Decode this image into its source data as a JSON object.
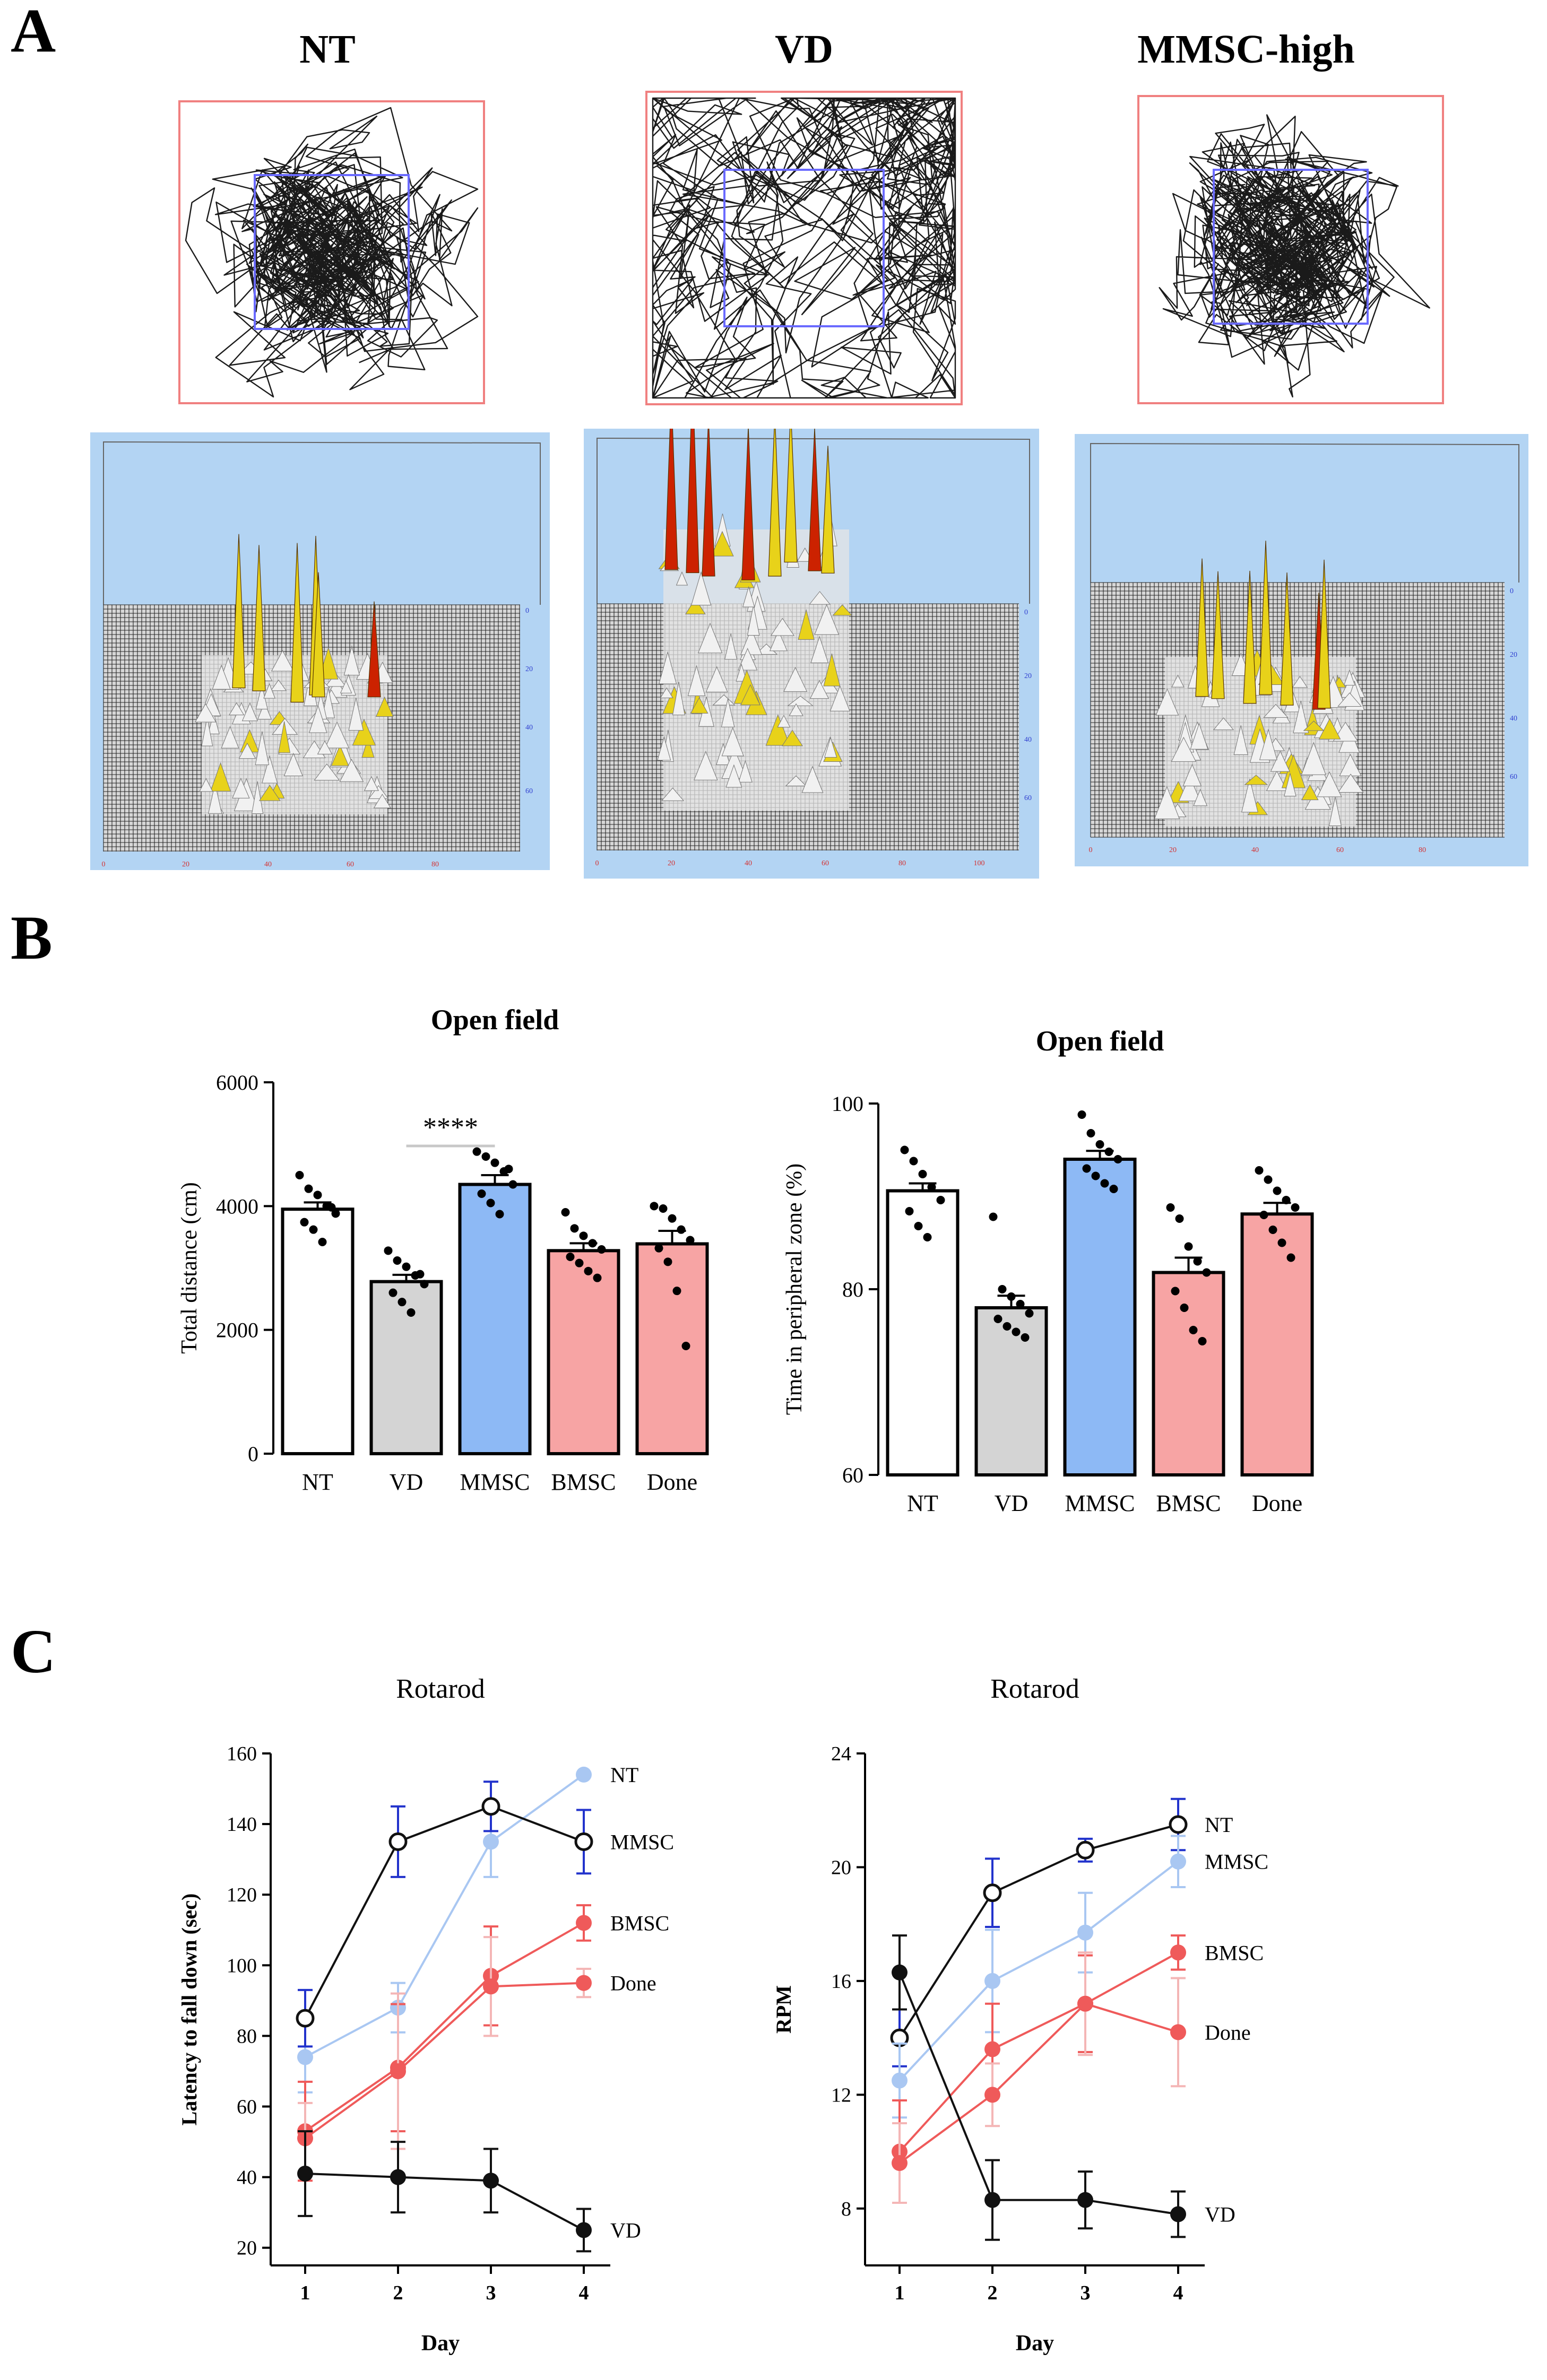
{
  "panel_labels": {
    "a": "A",
    "b": "B",
    "c": "C"
  },
  "panel_a": {
    "groups": [
      "NT",
      "VD",
      "MMSC-high"
    ],
    "heatmap_x_ticks": [
      "0",
      "20",
      "40",
      "60",
      "80"
    ],
    "heatmap_x_ticks_vd": [
      "0",
      "20",
      "40",
      "60",
      "80",
      "100"
    ],
    "heatmap_y_ticks": [
      "0",
      "20",
      "40",
      "60"
    ],
    "colors": {
      "track": "#1a1a1a",
      "arena_border": "#f08080",
      "center_zone": "#6a6aff",
      "heatmap_bg": "#b3d4f3",
      "peak_high": "#cc2200",
      "peak_mid": "#e8d21a"
    }
  },
  "chart_data": [
    {
      "type": "bar",
      "title": "Open field",
      "ylabel": "Total distance (cm)",
      "categories": [
        "NT",
        "VD",
        "MMSC",
        "BMSC",
        "Done"
      ],
      "values": [
        3950,
        2780,
        4350,
        3280,
        3390
      ],
      "errors": [
        110,
        110,
        150,
        120,
        210
      ],
      "bar_colors": [
        "#ffffff",
        "#d4d4d4",
        "#8db9f5",
        "#f7a4a4",
        "#f7a4a4"
      ],
      "points": [
        [
          4500,
          4280,
          4180,
          4000,
          3880,
          3740,
          3620,
          3420,
          3980
        ],
        [
          3280,
          3120,
          3020,
          2880,
          2740,
          2600,
          2450,
          2280,
          2900
        ],
        [
          4880,
          4800,
          4700,
          4560,
          4350,
          4200,
          4050,
          3870,
          4600
        ],
        [
          3900,
          3640,
          3520,
          3400,
          3300,
          3180,
          3080,
          2950,
          2840
        ],
        [
          4000,
          3960,
          3800,
          3620,
          3450,
          3320,
          3100,
          2630,
          1740
        ]
      ],
      "yticks": [
        "0",
        "2000",
        "4000",
        "6000"
      ],
      "ylim": [
        0,
        6000
      ],
      "annotation": "****",
      "annotation_between": [
        "VD",
        "MMSC"
      ]
    },
    {
      "type": "bar",
      "title": "Open field",
      "ylabel": "Time in peripheral zone (%)",
      "categories": [
        "NT",
        "VD",
        "MMSC",
        "BMSC",
        "Done"
      ],
      "values": [
        90.6,
        78.0,
        94.0,
        81.8,
        88.1
      ],
      "errors": [
        0.8,
        1.3,
        0.9,
        1.6,
        1.2
      ],
      "bar_colors": [
        "#ffffff",
        "#d4d4d4",
        "#8db9f5",
        "#f7a4a4",
        "#f7a4a4"
      ],
      "points": [
        [
          95.0,
          93.8,
          92.4,
          91.0,
          89.6,
          88.4,
          86.8,
          85.6
        ],
        [
          87.8,
          80.0,
          79.2,
          78.4,
          77.4,
          76.8,
          76.0,
          75.4,
          74.8
        ],
        [
          98.8,
          96.8,
          95.6,
          94.8,
          94.0,
          93.0,
          92.2,
          91.4,
          90.8
        ],
        [
          88.8,
          87.6,
          84.6,
          83.0,
          81.8,
          79.8,
          78.0,
          75.6,
          74.4
        ],
        [
          92.8,
          91.8,
          90.6,
          89.6,
          88.8,
          88.0,
          86.4,
          85.0,
          83.4
        ]
      ],
      "yticks": [
        "60",
        "80",
        "100"
      ],
      "ylim": [
        60,
        100
      ]
    },
    {
      "type": "line",
      "title": "Rotarod",
      "xlabel": "Day",
      "ylabel": "Latency to fall down (sec)",
      "x": [
        1,
        2,
        3,
        4
      ],
      "xticks": [
        "1",
        "2",
        "3",
        "4"
      ],
      "yticks": [
        "20",
        "40",
        "60",
        "80",
        "100",
        "120",
        "140",
        "160"
      ],
      "ylim": [
        15,
        160
      ],
      "series": [
        {
          "name": "NT",
          "values": [
            74,
            88,
            135,
            154
          ],
          "errors": [
            10,
            7,
            10,
            0
          ],
          "color": "#a9c7f2",
          "marker": "filled",
          "errcolor": "#a9c7f2"
        },
        {
          "name": "MMSC",
          "values": [
            85,
            135,
            145,
            135
          ],
          "errors": [
            8,
            10,
            7,
            9
          ],
          "color": "#111111",
          "marker": "open",
          "errcolor": "#2233cc"
        },
        {
          "name": "BMSC",
          "values": [
            53,
            71,
            97,
            112
          ],
          "errors": [
            14,
            18,
            14,
            5
          ],
          "color": "#ef5a5a",
          "marker": "filled",
          "errcolor": "#ef5a5a"
        },
        {
          "name": "Done",
          "values": [
            51,
            70,
            94,
            95
          ],
          "errors": [
            10,
            22,
            14,
            4
          ],
          "color": "#ef5a5a",
          "marker": "filled",
          "errcolor": "#f4b6b6"
        },
        {
          "name": "VD",
          "values": [
            41,
            40,
            39,
            25
          ],
          "errors": [
            12,
            10,
            9,
            6
          ],
          "color": "#111111",
          "marker": "filled",
          "errcolor": "#111111"
        }
      ]
    },
    {
      "type": "line",
      "title": "Rotarod",
      "xlabel": "Day",
      "ylabel": "RPM",
      "x": [
        1,
        2,
        3,
        4
      ],
      "xticks": [
        "1",
        "2",
        "3",
        "4"
      ],
      "yticks": [
        "8",
        "12",
        "16",
        "20",
        "24"
      ],
      "ylim": [
        6,
        24
      ],
      "series": [
        {
          "name": "NT",
          "values": [
            14.0,
            19.1,
            20.6,
            21.5
          ],
          "errors": [
            1.0,
            1.2,
            0.4,
            0.9
          ],
          "color": "#111111",
          "marker": "open",
          "errcolor": "#2233cc"
        },
        {
          "name": "MMSC",
          "values": [
            12.5,
            16.0,
            17.7,
            20.2
          ],
          "errors": [
            1.3,
            1.8,
            1.4,
            0.9
          ],
          "color": "#a9c7f2",
          "marker": "filled",
          "errcolor": "#a9c7f2"
        },
        {
          "name": "BMSC",
          "values": [
            10.0,
            13.6,
            15.2,
            17.0
          ],
          "errors": [
            1.8,
            1.6,
            1.7,
            0.6
          ],
          "color": "#ef5a5a",
          "marker": "filled",
          "errcolor": "#ef5a5a"
        },
        {
          "name": "Done",
          "values": [
            9.6,
            12.0,
            15.2,
            14.2
          ],
          "errors": [
            1.4,
            1.1,
            1.8,
            1.9
          ],
          "color": "#ef5a5a",
          "marker": "filled",
          "errcolor": "#f4b6b6"
        },
        {
          "name": "VD",
          "values": [
            16.3,
            8.3,
            8.3,
            7.8
          ],
          "errors": [
            1.3,
            1.4,
            1.0,
            0.8
          ],
          "color": "#111111",
          "marker": "filled",
          "errcolor": "#111111"
        }
      ]
    }
  ]
}
